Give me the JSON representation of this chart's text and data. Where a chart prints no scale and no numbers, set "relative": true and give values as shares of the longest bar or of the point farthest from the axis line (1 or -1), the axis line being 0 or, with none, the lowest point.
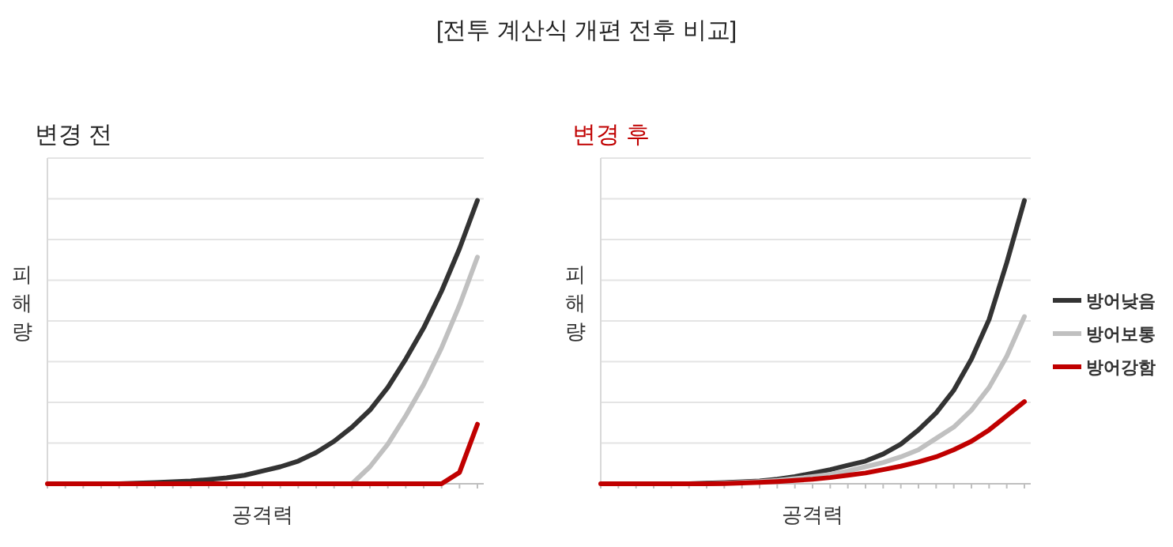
{
  "chart_data": [
    {
      "type": "line",
      "title": "변경 전",
      "xlabel": "공격력",
      "ylabel": "피해량",
      "relative": true,
      "grid": "y",
      "legend": false,
      "line_style": "solid",
      "marker": "none",
      "annotations": [
        "[전투 계산식 개편 전후 비교]"
      ],
      "categories": [
        null,
        null,
        null,
        null,
        null,
        null,
        null,
        null,
        null,
        null,
        null,
        null,
        null,
        null,
        null,
        null,
        null,
        null,
        null,
        null,
        null,
        null,
        null,
        null,
        null
      ],
      "series": [
        {
          "color": "#333333",
          "values": [
            null,
            null,
            null,
            null,
            0,
            0.002,
            0.004,
            0.007,
            0.01,
            0.015,
            0.021,
            0.03,
            0.045,
            0.06,
            0.08,
            0.11,
            0.15,
            0.2,
            0.26,
            0.34,
            0.44,
            0.55,
            0.68,
            0.83,
            1.0
          ]
        },
        {
          "color": "#c0c0c0",
          "values": [
            null,
            null,
            null,
            null,
            null,
            null,
            null,
            null,
            null,
            null,
            null,
            null,
            null,
            null,
            null,
            null,
            null,
            0,
            0.06,
            0.14,
            0.24,
            0.35,
            0.48,
            0.63,
            0.8
          ]
        },
        {
          "color": "#c00000",
          "values": [
            0,
            0,
            0,
            0,
            0,
            0,
            0,
            0,
            0,
            0,
            0,
            0,
            0,
            0,
            0,
            0,
            0,
            0,
            0,
            0,
            0,
            0,
            0,
            0.04,
            0.21
          ]
        }
      ]
    },
    {
      "type": "line",
      "title": "변경 후",
      "xlabel": "공격력",
      "ylabel": "피해량",
      "relative": true,
      "grid": "y",
      "legend": "right",
      "line_style": "solid",
      "marker": "none",
      "categories": [
        null,
        null,
        null,
        null,
        null,
        null,
        null,
        null,
        null,
        null,
        null,
        null,
        null,
        null,
        null,
        null,
        null,
        null,
        null,
        null,
        null,
        null,
        null,
        null,
        null
      ],
      "series": [
        {
          "name": "방어낮음",
          "color": "#333333",
          "values": [
            null,
            null,
            null,
            null,
            null,
            0,
            0.002,
            0.004,
            0.007,
            0.01,
            0.016,
            0.025,
            0.037,
            0.05,
            0.065,
            0.08,
            0.105,
            0.14,
            0.19,
            0.25,
            0.33,
            0.44,
            0.58,
            0.78,
            1.0
          ]
        },
        {
          "name": "방어보통",
          "color": "#c0c0c0",
          "values": [
            null,
            null,
            null,
            null,
            null,
            null,
            0,
            0.002,
            0.005,
            0.008,
            0.012,
            0.018,
            0.025,
            0.033,
            0.045,
            0.06,
            0.075,
            0.095,
            0.12,
            0.16,
            0.2,
            0.26,
            0.34,
            0.45,
            0.59
          ]
        },
        {
          "name": "방어강함",
          "color": "#c00000",
          "values": [
            0,
            0,
            0,
            0,
            0,
            0,
            0,
            0.001,
            0.003,
            0.005,
            0.008,
            0.012,
            0.016,
            0.022,
            0.03,
            0.038,
            0.05,
            0.062,
            0.077,
            0.095,
            0.12,
            0.15,
            0.19,
            0.24,
            0.29
          ]
        }
      ]
    }
  ]
}
